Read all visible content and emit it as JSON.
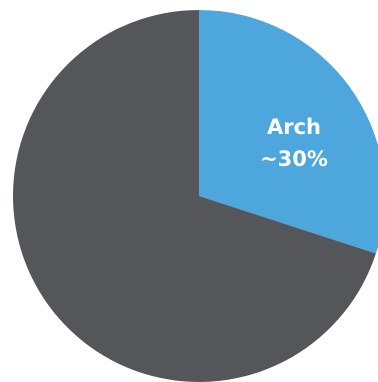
{
  "chart_data": {
    "type": "pie",
    "title": "",
    "slices": [
      {
        "label": "Arch",
        "display_value": "~30%",
        "value": 30,
        "color": "#4da6dc"
      },
      {
        "label": "",
        "display_value": "",
        "value": 70,
        "color": "#55565a"
      }
    ],
    "start_angle_deg": 0,
    "direction": "clockwise",
    "legend": "none"
  }
}
